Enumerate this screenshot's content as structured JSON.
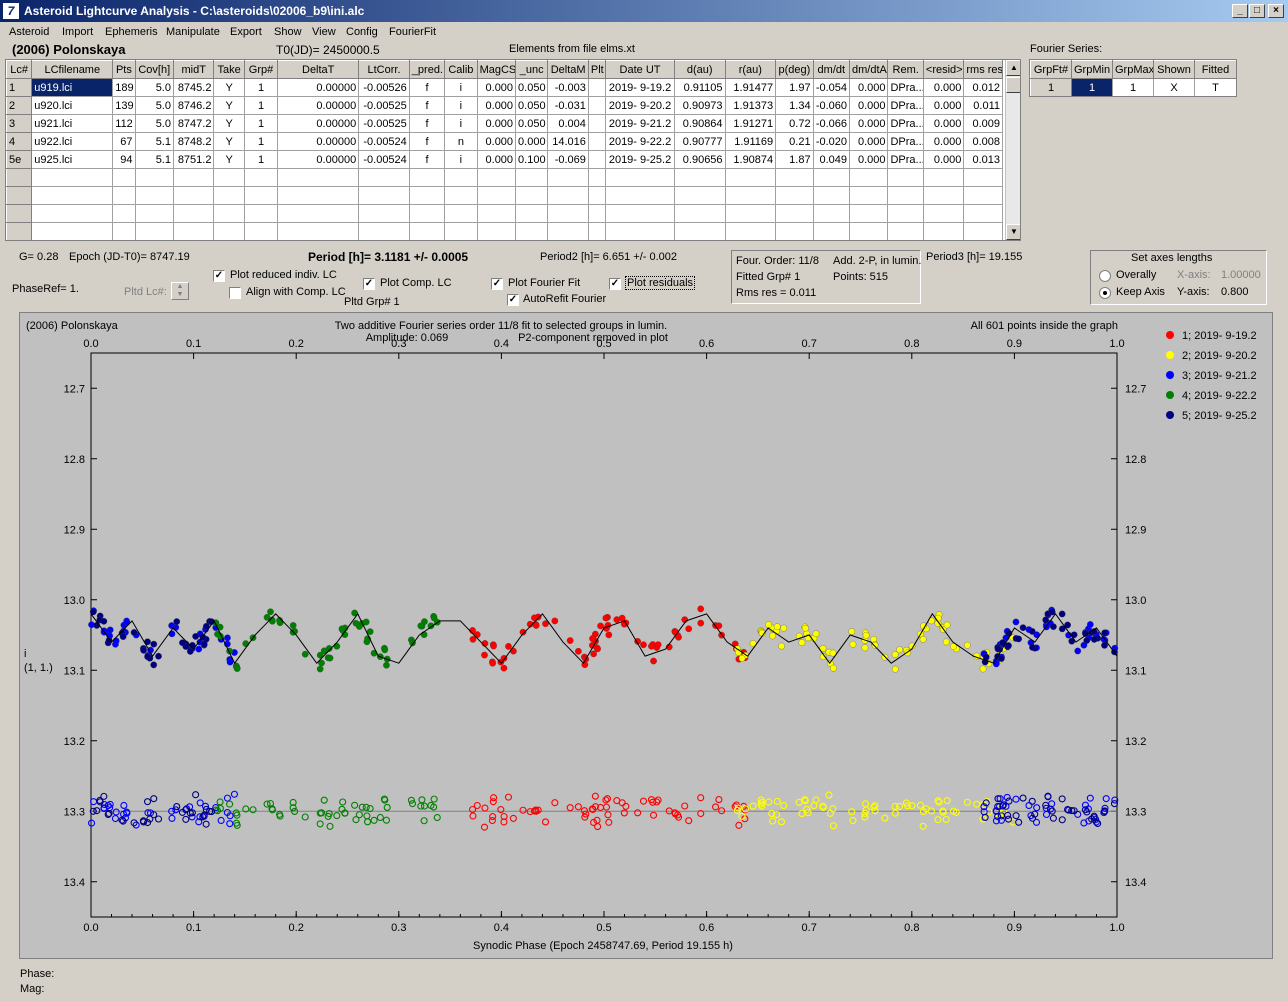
{
  "window": {
    "title": "Asteroid Lightcurve Analysis - C:\\asteroids\\02006_b9\\ini.alc",
    "icon_name": "app-icon",
    "min": "_",
    "max": "□",
    "close": "×"
  },
  "menu": [
    "Asteroid",
    "Import",
    "Ephemeris",
    "Manipulate",
    "Export",
    "Show",
    "View",
    "Config",
    "FourierFit"
  ],
  "header": {
    "asteroid": "(2006) Polonskaya",
    "t0": "T0(JD)= 2450000.5",
    "elements": "Elements from file elms.xt"
  },
  "lc_table": {
    "columns": [
      "Lc#",
      "LCfilename",
      "Pts",
      "Cov[h]",
      "midT",
      "Take",
      "Grp#",
      "DeltaT",
      "LtCorr.",
      "_pred.",
      "Calib",
      "MagCS",
      "_unc",
      "DeltaM",
      "Plt",
      "Date UT",
      "d(au)",
      "r(au)",
      "p(deg)",
      "dm/dt",
      "dm/dtA",
      "Rem.",
      "<resid>",
      "rms res"
    ],
    "rows": [
      [
        "1",
        "u919.lci",
        "189",
        "5.0",
        "8745.2",
        "Y",
        "1",
        "0.00000",
        "-0.00526",
        "f",
        "i",
        "0.000",
        "0.050",
        "-0.003",
        "",
        "2019- 9-19.2",
        "0.91105",
        "1.91477",
        "1.97",
        "-0.054",
        "0.000",
        "DPra...",
        "0.000",
        "0.012"
      ],
      [
        "2",
        "u920.lci",
        "139",
        "5.0",
        "8746.2",
        "Y",
        "1",
        "0.00000",
        "-0.00525",
        "f",
        "i",
        "0.000",
        "0.050",
        "-0.031",
        "",
        "2019- 9-20.2",
        "0.90973",
        "1.91373",
        "1.34",
        "-0.060",
        "0.000",
        "DPra...",
        "0.000",
        "0.011"
      ],
      [
        "3",
        "u921.lci",
        "112",
        "5.0",
        "8747.2",
        "Y",
        "1",
        "0.00000",
        "-0.00525",
        "f",
        "i",
        "0.000",
        "0.050",
        "0.004",
        "",
        "2019- 9-21.2",
        "0.90864",
        "1.91271",
        "0.72",
        "-0.066",
        "0.000",
        "DPra...",
        "0.000",
        "0.009"
      ],
      [
        "4",
        "u922.lci",
        "67",
        "5.1",
        "8748.2",
        "Y",
        "1",
        "0.00000",
        "-0.00524",
        "f",
        "n",
        "0.000",
        "0.000",
        "14.016",
        "",
        "2019- 9-22.2",
        "0.90777",
        "1.91169",
        "0.21",
        "-0.020",
        "0.000",
        "DPra...",
        "0.000",
        "0.008"
      ],
      [
        "5e",
        "u925.lci",
        "94",
        "5.1",
        "8751.2",
        "Y",
        "1",
        "0.00000",
        "-0.00524",
        "f",
        "i",
        "0.000",
        "0.100",
        "-0.069",
        "",
        "2019- 9-25.2",
        "0.90656",
        "1.90874",
        "1.87",
        "0.049",
        "0.000",
        "DPra...",
        "0.000",
        "0.013"
      ]
    ],
    "empty_rows": 4
  },
  "fourier_series": {
    "label": "Fourier Series:",
    "columns": [
      "GrpFt#",
      "GrpMin",
      "GrpMax",
      "Shown",
      "Fitted"
    ],
    "row": [
      "1",
      "1",
      "1",
      "X",
      "T"
    ]
  },
  "info": {
    "g": "G= 0.28",
    "epoch": "Epoch (JD-T0)= 8747.19",
    "period": "Period [h]= 3.1181 +/- 0.0005",
    "period2": "Period2 [h]= 6.651 +/- 0.002",
    "phase_ref": "PhaseRef= 1.",
    "pltd_lc": "Pltd Lc#:",
    "pltd_grp": "Pltd Grp#  1",
    "four_order": "Four. Order: 11/8",
    "add": "Add. 2-P, in lumin.",
    "fitted_grp": "Fitted Grp# 1",
    "points": "Points: 515",
    "rms": "Rms res     = 0.011",
    "period3": "Period3 [h]= 19.155"
  },
  "options": {
    "plot_reduced": {
      "label": "Plot reduced indiv. LC",
      "checked": true
    },
    "align": {
      "label": "Align with Comp. LC",
      "checked": false
    },
    "plot_comp": {
      "label": "Plot Comp. LC",
      "checked": true
    },
    "plot_fourier": {
      "label": "Plot Fourier Fit",
      "checked": true
    },
    "autorefit": {
      "label": "AutoRefit Fourier",
      "checked": true
    },
    "plot_residuals": {
      "label": "Plot residuals",
      "checked": true
    }
  },
  "axes_box": {
    "title": "Set axes lengths",
    "overally": "Overally",
    "keep": "Keep Axis",
    "xaxis_label": "X-axis:",
    "xaxis_value": "1.00000",
    "yaxis_label": "Y-axis:",
    "yaxis_value": "0.800",
    "selected": "keep"
  },
  "plot_header": {
    "left": "(2006) Polonskaya",
    "center1": "Two additive Fourier series order 11/8 fit to selected groups in lumin.",
    "center2a": "Amplitude: 0.069",
    "center2b": "P2-component removed in plot",
    "right": "All 601 points inside the graph"
  },
  "ylabel1": "i",
  "ylabel2": "(1, 1.)",
  "footer": {
    "phase": "Phase:",
    "mag": "Mag:"
  },
  "chart_data": {
    "type": "scatter",
    "xlabel": "Synodic Phase (Epoch 2458747.69, Period 19.155 h)",
    "ylabel": "i (1, 1.)",
    "xlim": [
      0.0,
      1.0
    ],
    "ylim": [
      12.65,
      13.45
    ],
    "y_inverted": true,
    "x_ticks": [
      "0.0",
      "0.1",
      "0.2",
      "0.3",
      "0.4",
      "0.5",
      "0.6",
      "0.7",
      "0.8",
      "0.9",
      "1.0"
    ],
    "y_ticks": [
      "12.7",
      "12.8",
      "12.9",
      "13.0",
      "13.1",
      "13.2",
      "13.3",
      "13.4"
    ],
    "grid": false,
    "legend_position": "right",
    "residual_offset_level": 13.3,
    "series": [
      {
        "name": "1; 2019- 9-19.2",
        "color": "#ff0000",
        "range": [
          0.37,
          0.64
        ]
      },
      {
        "name": "2; 2019- 9-20.2",
        "color": "#ffff00",
        "range": [
          0.63,
          0.9
        ]
      },
      {
        "name": "3; 2019- 9-21.2",
        "color": "#0000ff",
        "range": [
          0.0,
          0.14
        ],
        "range2": [
          0.87,
          1.0
        ]
      },
      {
        "name": "4; 2019- 9-22.2",
        "color": "#008000",
        "range": [
          0.12,
          0.34
        ]
      },
      {
        "name": "5; 2019- 9-25.2",
        "color": "#000080",
        "range": [
          0.0,
          0.12
        ],
        "range2": [
          0.87,
          1.0
        ]
      }
    ],
    "fit_points": [
      [
        0.0,
        13.02
      ],
      [
        0.02,
        13.06
      ],
      [
        0.04,
        13.03
      ],
      [
        0.06,
        13.08
      ],
      [
        0.08,
        13.04
      ],
      [
        0.1,
        13.07
      ],
      [
        0.12,
        13.03
      ],
      [
        0.14,
        13.09
      ],
      [
        0.16,
        13.05
      ],
      [
        0.18,
        13.02
      ],
      [
        0.2,
        13.05
      ],
      [
        0.22,
        13.09
      ],
      [
        0.24,
        13.06
      ],
      [
        0.26,
        13.02
      ],
      [
        0.28,
        13.08
      ],
      [
        0.3,
        13.09
      ],
      [
        0.32,
        13.05
      ],
      [
        0.34,
        13.03
      ],
      [
        0.36,
        13.03
      ],
      [
        0.38,
        13.06
      ],
      [
        0.4,
        13.09
      ],
      [
        0.42,
        13.05
      ],
      [
        0.44,
        13.02
      ],
      [
        0.46,
        13.06
      ],
      [
        0.48,
        13.09
      ],
      [
        0.5,
        13.04
      ],
      [
        0.52,
        13.03
      ],
      [
        0.54,
        13.08
      ],
      [
        0.56,
        13.07
      ],
      [
        0.58,
        13.03
      ],
      [
        0.6,
        13.02
      ],
      [
        0.62,
        13.06
      ],
      [
        0.64,
        13.08
      ],
      [
        0.66,
        13.04
      ],
      [
        0.68,
        13.06
      ],
      [
        0.7,
        13.05
      ],
      [
        0.72,
        13.09
      ],
      [
        0.74,
        13.05
      ],
      [
        0.76,
        13.06
      ],
      [
        0.78,
        13.09
      ],
      [
        0.8,
        13.07
      ],
      [
        0.82,
        13.02
      ],
      [
        0.84,
        13.06
      ],
      [
        0.86,
        13.08
      ],
      [
        0.88,
        13.09
      ],
      [
        0.9,
        13.04
      ],
      [
        0.92,
        13.06
      ],
      [
        0.94,
        13.02
      ],
      [
        0.96,
        13.06
      ],
      [
        0.98,
        13.04
      ],
      [
        1.0,
        13.08
      ]
    ]
  }
}
